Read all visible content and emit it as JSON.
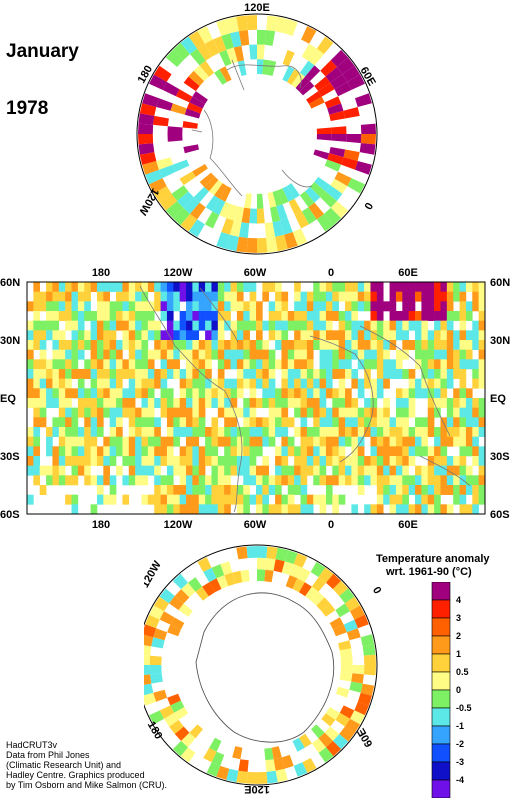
{
  "title": {
    "month": "January",
    "year": "1978"
  },
  "north_polar": {
    "labels": [
      "120E",
      "60E",
      "0",
      "120W",
      "180"
    ]
  },
  "equator_map": {
    "top_lon_labels": [
      "180",
      "120W",
      "60W",
      "0",
      "60E"
    ],
    "bottom_lon_labels": [
      "180",
      "120W",
      "60W",
      "0",
      "60E"
    ],
    "left_lat_labels": [
      "60N",
      "30N",
      "EQ",
      "30S",
      "60S"
    ],
    "right_lat_labels": [
      "60N",
      "30N",
      "EQ",
      "30S",
      "60S"
    ]
  },
  "south_polar": {
    "labels": [
      "120W",
      "0",
      "180",
      "60E",
      "120E"
    ]
  },
  "legend": {
    "title_line1": "Temperature anomaly",
    "title_line2": "wrt. 1961-90  (°C)",
    "levels": [
      "4",
      "3",
      "2",
      "1",
      "0.5",
      "0",
      "-0.5",
      "-1",
      "-2",
      "-3",
      "-4"
    ],
    "colors": [
      "#a0007e",
      "#ff2000",
      "#ff6000",
      "#ff9a1a",
      "#ffd23c",
      "#fffc85",
      "#7ef064",
      "#5ce8e6",
      "#34a4ff",
      "#1050ff",
      "#1010c8",
      "#7010e8"
    ]
  },
  "credits": {
    "lines": [
      "HadCRUT3v",
      "Data from Phil Jones",
      "(Climatic Research Unit) and",
      "Hadley Centre.  Graphics produced",
      "by Tim Osborn and Mike Salmon (CRU)."
    ]
  }
}
